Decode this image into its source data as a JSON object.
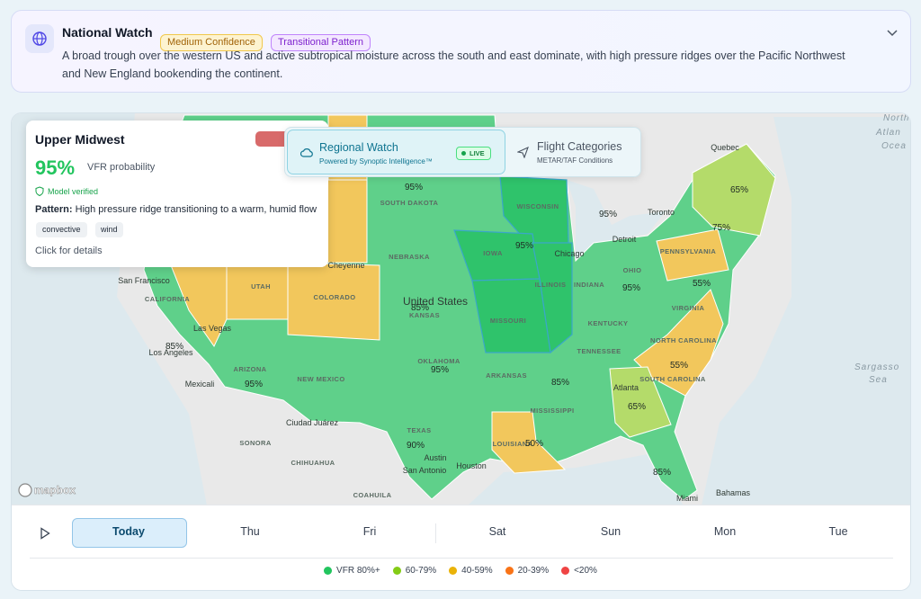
{
  "header": {
    "title": "National Watch",
    "badges": [
      {
        "text": "Medium Confidence",
        "color": "#a16207",
        "bg": "#fdf3d0",
        "border": "#f1c84b"
      },
      {
        "text": "Transitional Pattern",
        "color": "#7e22ce",
        "bg": "#f3e8ff",
        "border": "#c084fc"
      }
    ],
    "description": "A broad trough over the western US and active subtropical moisture across the south and east dominate, with high pressure ridges over the Pacific Northwest and New England bookending the continent."
  },
  "popup": {
    "region": "Upper Midwest",
    "probability": "95%",
    "probability_label": "VFR probability",
    "verified": "Model verified",
    "pattern_label": "Pattern:",
    "pattern": "High pressure ridge transitioning to a warm, humid flow",
    "tags": [
      "convective",
      "wind"
    ],
    "cta": "Click for details"
  },
  "tabs": [
    {
      "title": "Regional Watch",
      "subtitle": "Powered by Synoptic Intelligence™",
      "badge": "LIVE"
    },
    {
      "title": "Flight Categories",
      "subtitle": "METAR/TAF Conditions"
    }
  ],
  "map": {
    "attribution": "mapbox",
    "labels": [
      "SOUTH DAKOTA",
      "NEBRASKA",
      "IOWA",
      "ILLINOIS",
      "INDIANA",
      "OHIO",
      "WISCONSIN",
      "MISSOURI",
      "KANSAS",
      "OKLAHOMA",
      "TEXAS",
      "ARKANSAS",
      "MISSISSIPPI",
      "LOUISIANA",
      "TENNESSEE",
      "KENTUCKY",
      "VIRGINIA",
      "NORTH CAROLINA",
      "SOUTH CAROLINA",
      "PENNSYLVANIA",
      "UTAH",
      "COLORADO",
      "ARIZONA",
      "NEW MEXICO",
      "CALIFORNIA",
      "SONORA",
      "CHIHUAHUA",
      "COAHUILA",
      "Chicago",
      "Detroit",
      "Toronto",
      "Quebec",
      "Cheyenne",
      "San Francisco",
      "Las Vegas",
      "Los Angeles",
      "Mexicali",
      "Ciudad Juárez",
      "Atlanta",
      "Austin",
      "San Antonio",
      "Houston",
      "Miami",
      "Bahamas",
      "United States",
      "North",
      "Atlan",
      "Ocea",
      "Sargasso",
      "Sea"
    ],
    "percentages": [
      "95%",
      "95%",
      "95%",
      "65%",
      "75%",
      "55%",
      "95%",
      "85%",
      "95%",
      "85%",
      "95%",
      "55%",
      "65%",
      "85%",
      "50%",
      "90%",
      "85%"
    ]
  },
  "timeline": {
    "days": [
      "Today",
      "Thu",
      "Fri",
      "Sat",
      "Sun",
      "Mon",
      "Tue"
    ]
  },
  "legend": [
    {
      "label": "VFR 80%+",
      "color": "#22c55e"
    },
    {
      "label": "60-79%",
      "color": "#84cc16"
    },
    {
      "label": "40-59%",
      "color": "#eab308"
    },
    {
      "label": "20-39%",
      "color": "#f97316"
    },
    {
      "label": "<20%",
      "color": "#ef4444"
    }
  ]
}
